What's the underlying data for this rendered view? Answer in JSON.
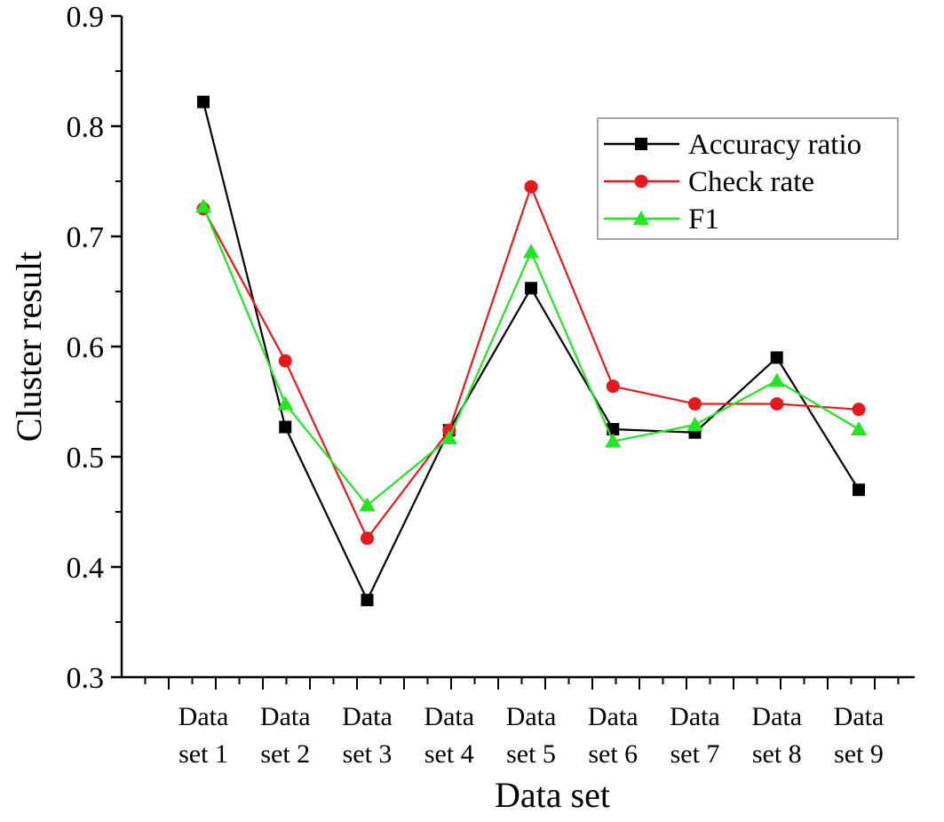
{
  "chart_data": {
    "type": "line",
    "xlabel": "Data set",
    "ylabel": "Cluster result",
    "categories": [
      [
        "Data",
        "set 1"
      ],
      [
        "Data",
        "set 2"
      ],
      [
        "Data",
        "set 3"
      ],
      [
        "Data",
        "set 4"
      ],
      [
        "Data",
        "set 5"
      ],
      [
        "Data",
        "set 6"
      ],
      [
        "Data",
        "set 7"
      ],
      [
        "Data",
        "set 8"
      ],
      [
        "Data",
        "set 9"
      ]
    ],
    "ylim": [
      0.3,
      0.9
    ],
    "yticks": [
      "0.3",
      "0.4",
      "0.5",
      "0.6",
      "0.7",
      "0.8",
      "0.9"
    ],
    "grid": false,
    "legend_position": "top-right",
    "series": [
      {
        "name": "Accuracy ratio",
        "color": "#000000",
        "marker": "square",
        "values": [
          0.822,
          0.527,
          0.37,
          0.524,
          0.653,
          0.525,
          0.522,
          0.59,
          0.47
        ]
      },
      {
        "name": "Check rate",
        "color": "#e8191d",
        "marker": "circle",
        "values": [
          0.725,
          0.587,
          0.426,
          0.524,
          0.745,
          0.564,
          0.548,
          0.548,
          0.543
        ]
      },
      {
        "name": "F1",
        "color": "#22e622",
        "marker": "triangle",
        "values": [
          0.727,
          0.548,
          0.456,
          0.517,
          0.686,
          0.514,
          0.529,
          0.569,
          0.525
        ]
      }
    ]
  }
}
